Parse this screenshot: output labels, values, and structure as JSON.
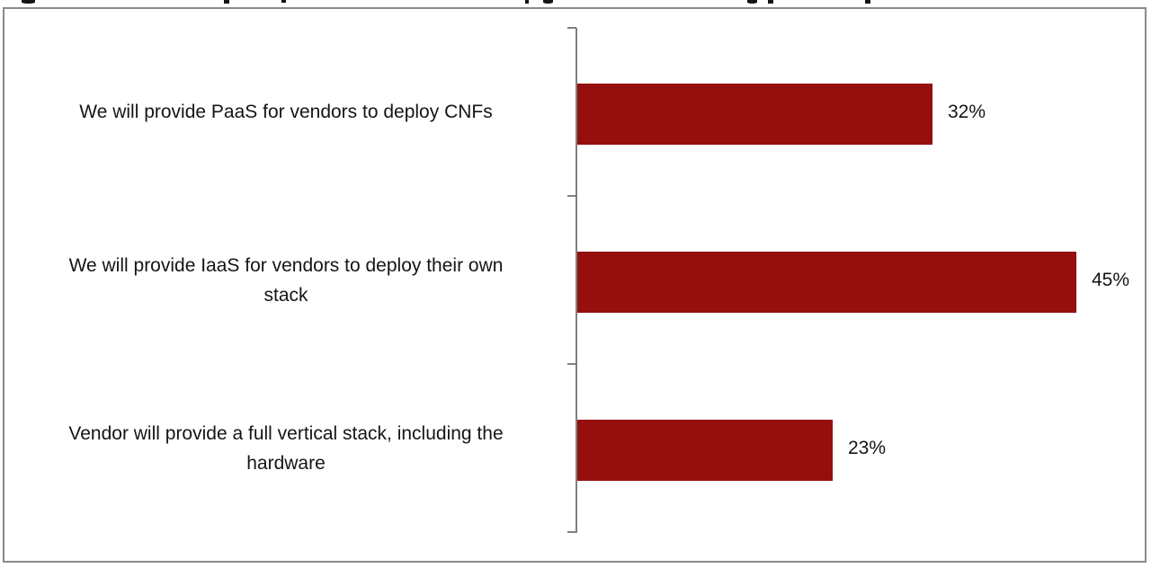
{
  "chart_data": {
    "type": "bar",
    "orientation": "horizontal",
    "categories": [
      "We will provide PaaS for vendors to deploy CNFs",
      "We will provide IaaS for vendors to deploy their own\nstack",
      "Vendor will provide a full vertical stack, including the\nhardware"
    ],
    "values": [
      32,
      45,
      23
    ],
    "labels": [
      "32%",
      "45%",
      "23%"
    ],
    "unit": "%",
    "xlim": [
      0,
      50
    ],
    "grid": false,
    "legend": false,
    "bar_color": "#950f0f",
    "axis_color": "#808080",
    "frame_color": "#8a8a8a",
    "title_clipped": true
  }
}
